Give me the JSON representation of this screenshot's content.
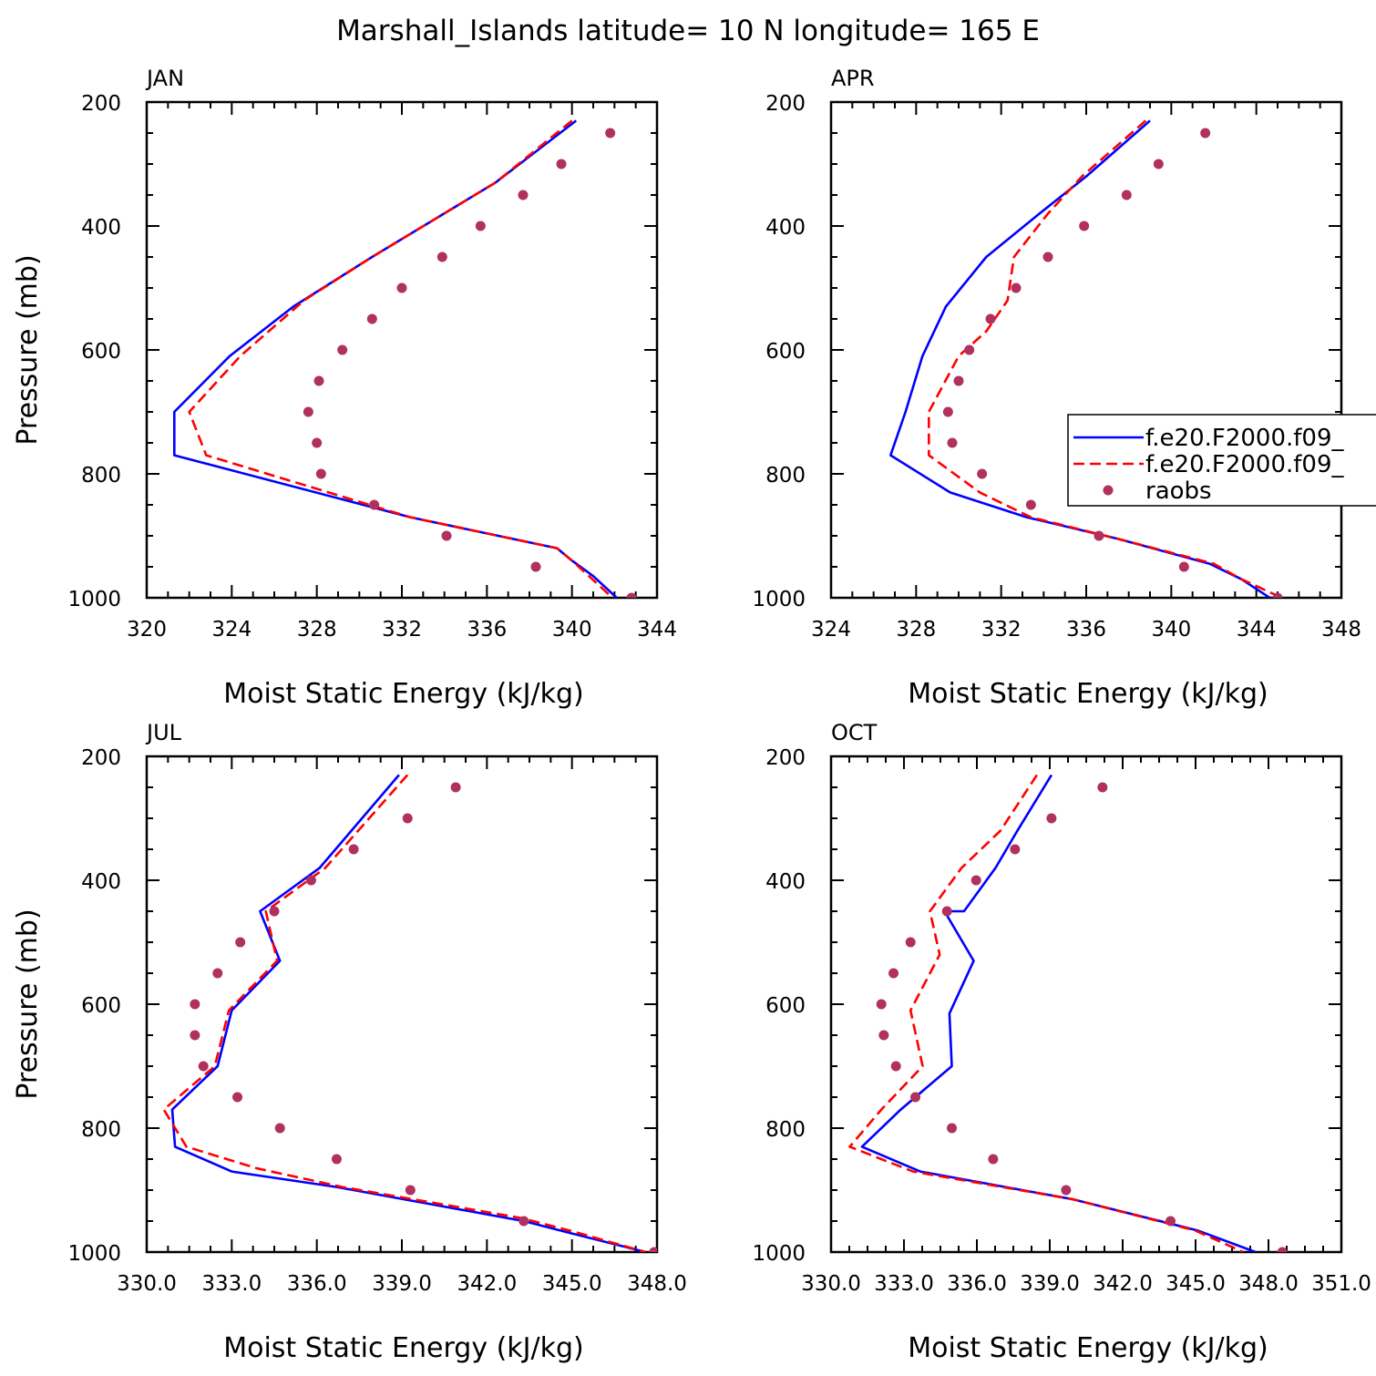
{
  "figure": {
    "title": "Marshall_Islands  latitude= 10 N longitude= 165 E"
  },
  "legend": {
    "placement": "right edge of APR panel (clipped)",
    "entries": [
      {
        "label": "f.e20.F2000.f09_",
        "style": "solid",
        "color": "#0000ff"
      },
      {
        "label": "f.e20.F2000.f09_",
        "style": "dashed",
        "color": "#ff0000"
      },
      {
        "label": "raobs",
        "style": "marker",
        "color": "#b03060"
      }
    ]
  },
  "chart_data": [
    {
      "type": "line",
      "panel_label": "JAN",
      "xlabel": "Moist Static Energy (kJ/kg)",
      "ylabel": "Pressure (mb)",
      "xlim": [
        320,
        344
      ],
      "xticks": [
        320,
        324,
        328,
        332,
        336,
        340,
        344
      ],
      "xtick_labels": [
        "320",
        "324",
        "328",
        "332",
        "336",
        "340",
        "344"
      ],
      "ylim": [
        1000,
        200
      ],
      "yticks": [
        200,
        400,
        600,
        800,
        1000
      ],
      "ytick_labels": [
        "200",
        "400",
        "600",
        "800",
        "1000"
      ],
      "series": [
        {
          "kind": "solid",
          "color": "#0000ff",
          "x": [
            340.2,
            336.4,
            330.6,
            326.9,
            323.9,
            321.3,
            321.3,
            332.4,
            339.3,
            340.0,
            341.0,
            342.2
          ],
          "y": [
            230,
            330,
            450,
            530,
            610,
            700,
            770,
            870,
            920,
            940,
            965,
            1003
          ]
        },
        {
          "kind": "dashed",
          "color": "#ff0000",
          "x": [
            340.0,
            336.4,
            330.6,
            327.4,
            324.4,
            322.0,
            322.8,
            332.4,
            339.3,
            340.0,
            340.8,
            342.0
          ],
          "y": [
            230,
            330,
            450,
            520,
            610,
            700,
            770,
            870,
            920,
            940,
            965,
            1003
          ]
        },
        {
          "kind": "marker",
          "color": "#b03060",
          "x": [
            341.8,
            339.5,
            337.7,
            335.7,
            333.9,
            332.0,
            330.6,
            329.2,
            328.1,
            327.6,
            328.0,
            328.2,
            330.7,
            334.1,
            338.3,
            342.8
          ],
          "y": [
            250,
            300,
            350,
            400,
            450,
            500,
            550,
            600,
            650,
            700,
            750,
            800,
            850,
            900,
            950,
            1000
          ]
        }
      ]
    },
    {
      "type": "line",
      "panel_label": "APR",
      "xlabel": "Moist Static Energy (kJ/kg)",
      "ylabel": "",
      "xlim": [
        324,
        348
      ],
      "xticks": [
        324,
        328,
        332,
        336,
        340,
        344,
        348
      ],
      "xtick_labels": [
        "324",
        "328",
        "332",
        "336",
        "340",
        "344",
        "348"
      ],
      "ylim": [
        1000,
        200
      ],
      "yticks": [
        200,
        400,
        600,
        800,
        1000
      ],
      "ytick_labels": [
        "200",
        "400",
        "600",
        "800",
        "1000"
      ],
      "series": [
        {
          "kind": "solid",
          "color": "#0000ff",
          "x": [
            339.0,
            336.0,
            333.8,
            331.3,
            329.4,
            328.3,
            327.5,
            326.8,
            329.6,
            333.2,
            337.5,
            341.8,
            343.3,
            344.9
          ],
          "y": [
            230,
            320,
            380,
            450,
            530,
            610,
            700,
            770,
            830,
            870,
            905,
            945,
            970,
            1006
          ]
        },
        {
          "kind": "dashed",
          "color": "#ff0000",
          "x": [
            338.8,
            335.8,
            334.2,
            332.6,
            332.3,
            331.3,
            330.0,
            328.6,
            328.6,
            331.0,
            333.4,
            337.5,
            342.0,
            343.3,
            345.2
          ],
          "y": [
            230,
            320,
            380,
            450,
            520,
            570,
            610,
            700,
            770,
            830,
            870,
            905,
            945,
            970,
            1000
          ]
        },
        {
          "kind": "marker",
          "color": "#b03060",
          "x": [
            341.6,
            339.4,
            337.9,
            335.9,
            334.2,
            332.7,
            331.5,
            330.5,
            330.0,
            329.5,
            329.7,
            331.1,
            333.4,
            336.6,
            340.6,
            345.0
          ],
          "y": [
            250,
            300,
            350,
            400,
            450,
            500,
            550,
            600,
            650,
            700,
            750,
            800,
            850,
            900,
            950,
            1000
          ]
        }
      ]
    },
    {
      "type": "line",
      "panel_label": "JUL",
      "xlabel": "Moist Static Energy (kJ/kg)",
      "ylabel": "Pressure (mb)",
      "xlim": [
        330,
        348
      ],
      "xticks": [
        330,
        333,
        336,
        339,
        342,
        345,
        348
      ],
      "xtick_labels": [
        "330.0",
        "333.0",
        "336.0",
        "339.0",
        "342.0",
        "345.0",
        "348.0"
      ],
      "ylim": [
        1000,
        200
      ],
      "yticks": [
        200,
        400,
        600,
        800,
        1000
      ],
      "ytick_labels": [
        "200",
        "400",
        "600",
        "800",
        "1000"
      ],
      "series": [
        {
          "kind": "solid",
          "color": "#0000ff",
          "x": [
            338.9,
            336.1,
            334.0,
            334.7,
            333.0,
            332.5,
            330.9,
            331.0,
            333.0,
            336.7,
            343.3,
            345.0,
            347.6
          ],
          "y": [
            230,
            380,
            450,
            530,
            610,
            700,
            770,
            830,
            870,
            895,
            950,
            970,
            1000
          ]
        },
        {
          "kind": "dashed",
          "color": "#ff0000",
          "x": [
            339.2,
            336.3,
            334.2,
            334.6,
            332.9,
            332.4,
            330.6,
            331.4,
            333.9,
            336.9,
            343.2,
            344.9,
            347.6
          ],
          "y": [
            230,
            380,
            450,
            530,
            610,
            700,
            770,
            830,
            865,
            895,
            945,
            965,
            1000
          ]
        },
        {
          "kind": "marker",
          "color": "#b03060",
          "x": [
            340.9,
            339.2,
            337.3,
            335.8,
            334.5,
            333.3,
            332.5,
            331.7,
            331.7,
            332.0,
            333.2,
            334.7,
            336.7,
            339.3,
            343.3,
            347.9
          ],
          "y": [
            250,
            300,
            350,
            400,
            450,
            500,
            550,
            600,
            650,
            700,
            750,
            800,
            850,
            900,
            950,
            1000
          ]
        }
      ]
    },
    {
      "type": "line",
      "panel_label": "OCT",
      "xlabel": "Moist Static Energy (kJ/kg)",
      "ylabel": "",
      "xlim": [
        330.03,
        351.03
      ],
      "xticks": [
        330.03,
        333.03,
        336.03,
        339.03,
        342.03,
        345.03,
        348.03,
        351.03
      ],
      "xtick_labels": [
        "330.0",
        "333.0",
        "336.0",
        "339.0",
        "342.0",
        "345.0",
        "348.0",
        "351.0"
      ],
      "ylim": [
        1000,
        200
      ],
      "yticks": [
        200,
        400,
        600,
        800,
        1000
      ],
      "ytick_labels": [
        "200",
        "400",
        "600",
        "800",
        "1000"
      ],
      "series": [
        {
          "kind": "solid",
          "color": "#0000ff",
          "x": [
            339.1,
            337.7,
            336.8,
            335.5,
            334.7,
            335.9,
            334.9,
            335.0,
            332.9,
            331.3,
            333.7,
            340.0,
            345.1,
            347.5
          ],
          "y": [
            230,
            320,
            380,
            450,
            450,
            530,
            615,
            700,
            770,
            830,
            870,
            915,
            965,
            1000
          ]
        },
        {
          "kind": "dashed",
          "color": "#ff0000",
          "x": [
            338.5,
            337.0,
            335.4,
            334.1,
            334.5,
            333.3,
            333.8,
            332.1,
            330.8,
            333.4,
            340.0,
            345.0,
            347.0
          ],
          "y": [
            230,
            320,
            380,
            450,
            520,
            610,
            700,
            770,
            830,
            870,
            915,
            965,
            1000
          ]
        },
        {
          "kind": "marker",
          "color": "#b03060",
          "x": [
            341.2,
            339.1,
            337.6,
            336.0,
            334.8,
            333.3,
            332.6,
            332.1,
            332.2,
            332.7,
            333.5,
            335.0,
            336.7,
            339.7,
            344.0,
            348.6
          ],
          "y": [
            250,
            300,
            350,
            400,
            450,
            500,
            550,
            600,
            650,
            700,
            750,
            800,
            850,
            900,
            950,
            1000
          ]
        }
      ]
    }
  ]
}
